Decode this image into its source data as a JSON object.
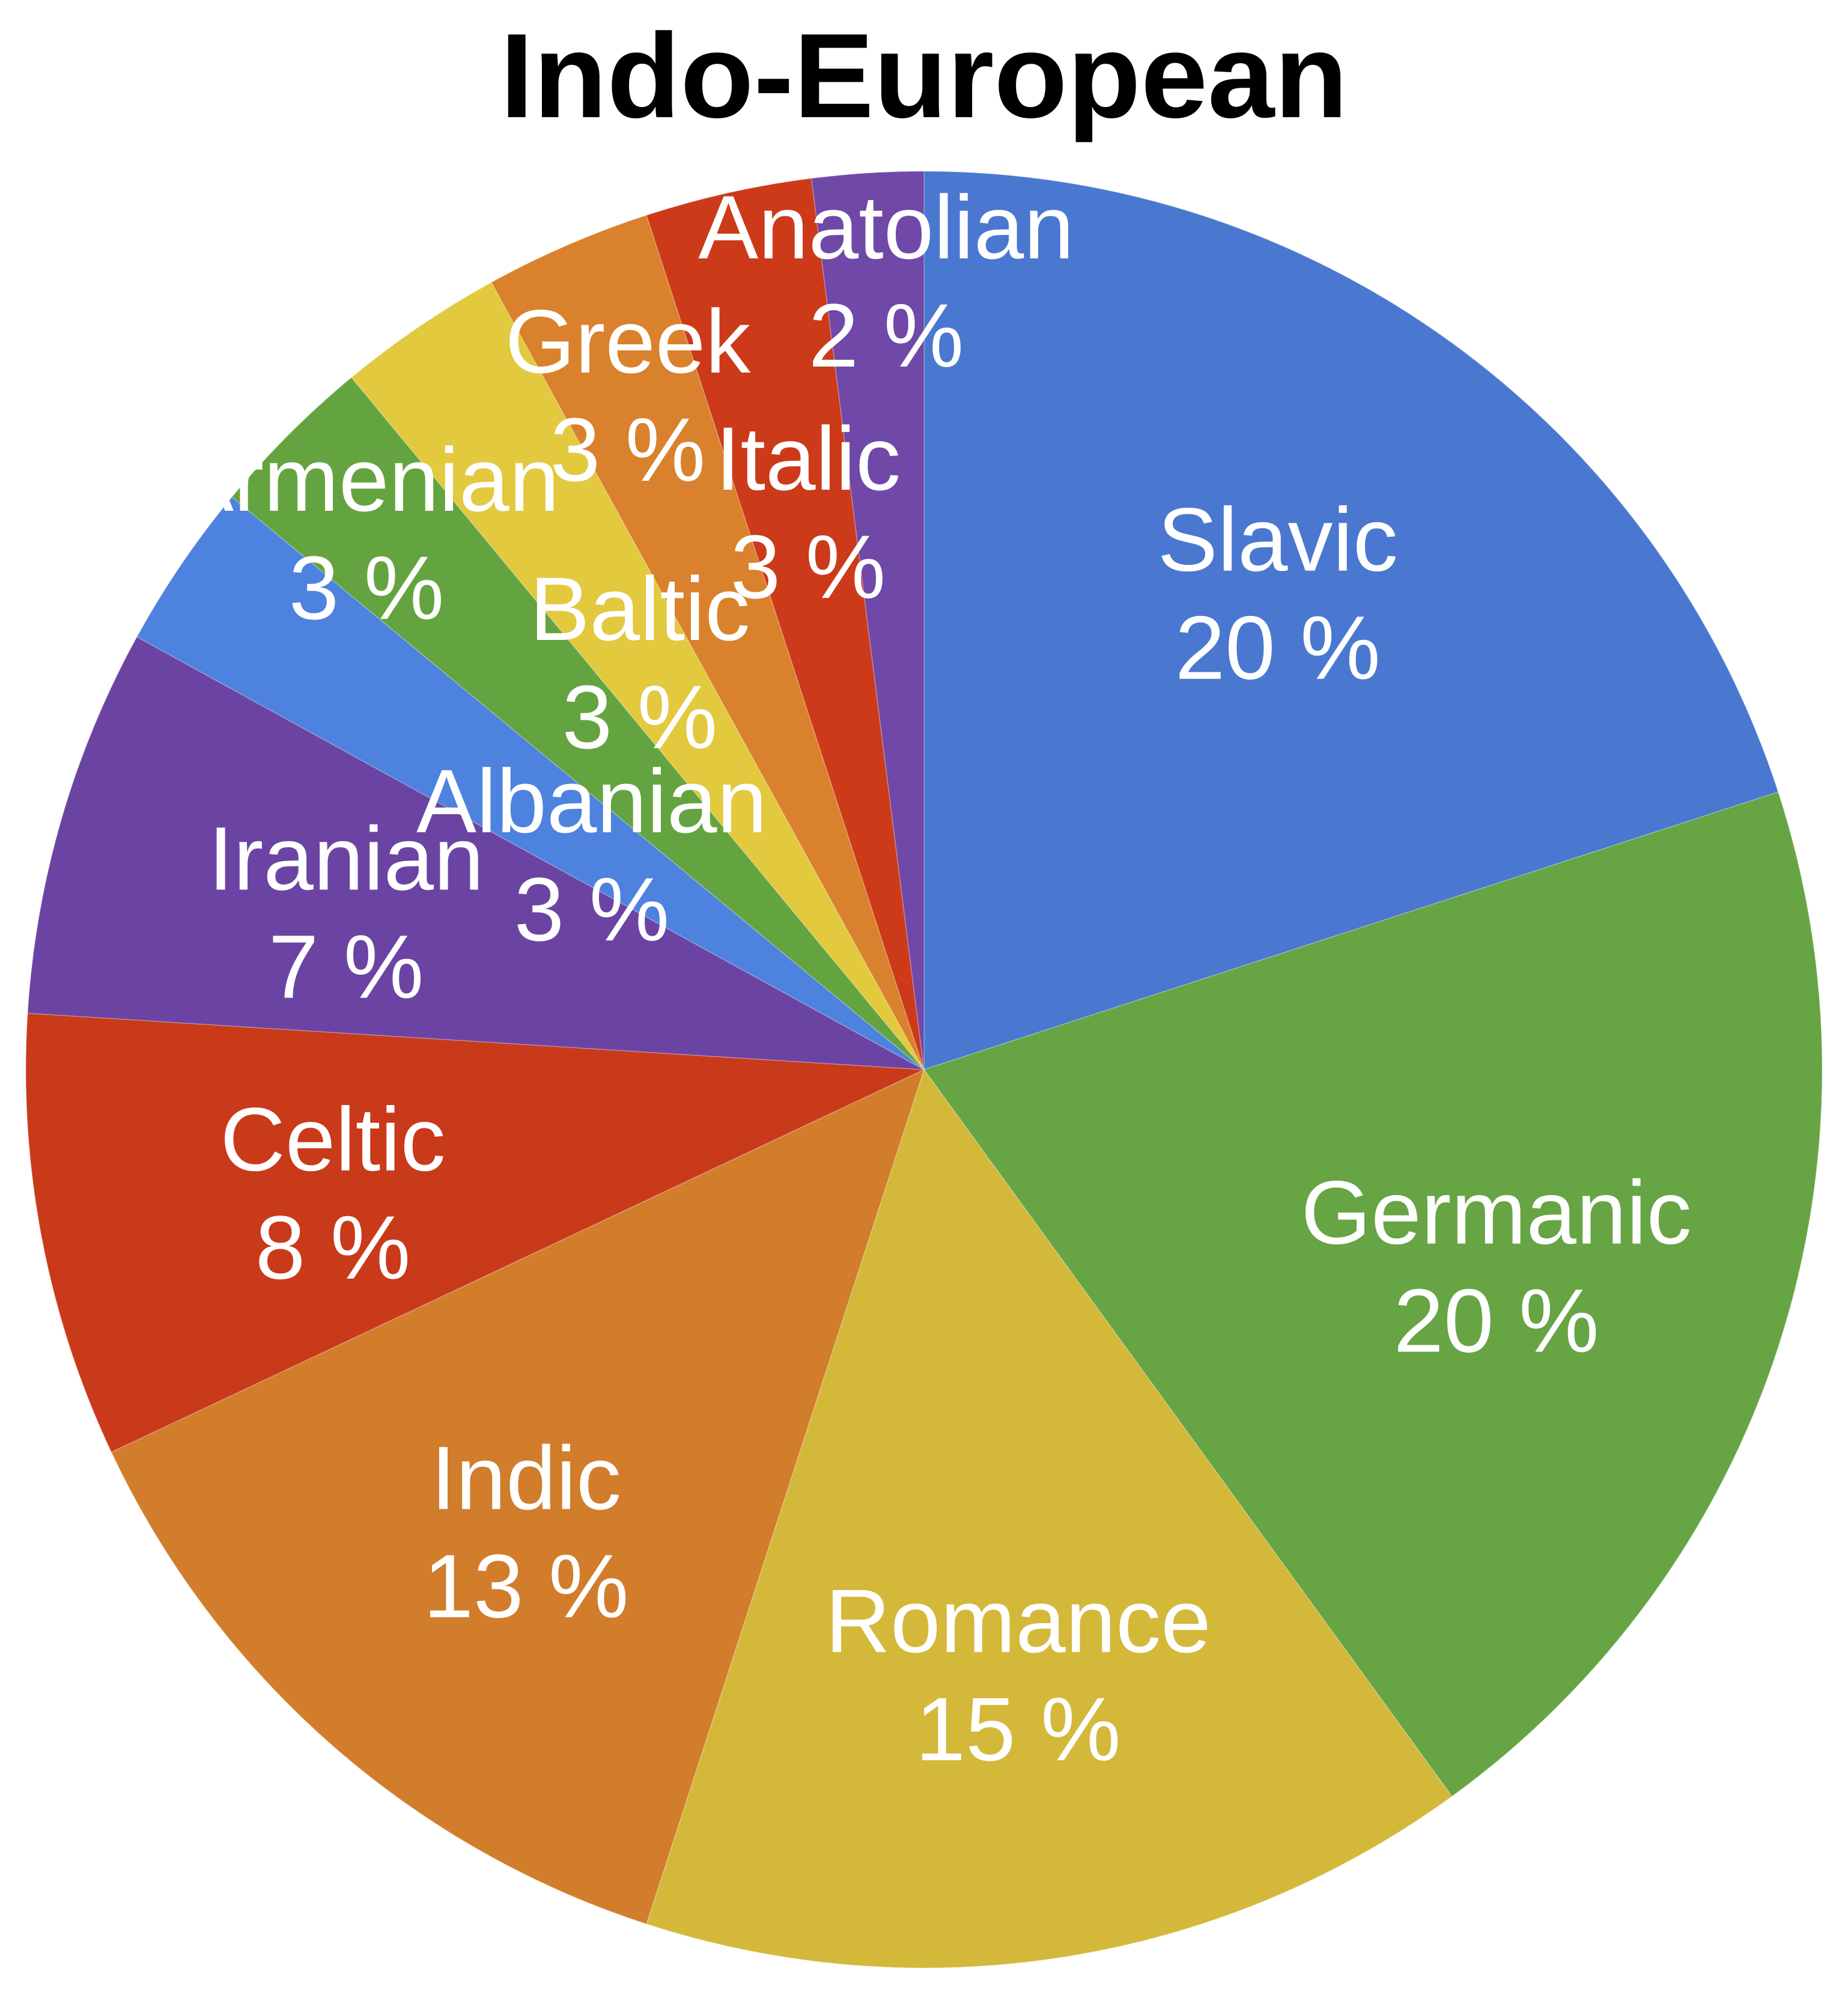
{
  "chart_data": {
    "type": "pie",
    "title": "Indo-European",
    "slices": [
      {
        "name": "Slavic",
        "value": 20,
        "label": "20 %",
        "color": "#4a78d0"
      },
      {
        "name": "Germanic",
        "value": 20,
        "label": "20 %",
        "color": "#66a444"
      },
      {
        "name": "Romance",
        "value": 15,
        "label": "15 %",
        "color": "#d4b83a"
      },
      {
        "name": "Indic",
        "value": 13,
        "label": "13 %",
        "color": "#d17d2b"
      },
      {
        "name": "Celtic",
        "value": 8,
        "label": "8 %",
        "color": "#c93a1a"
      },
      {
        "name": "Iranian",
        "value": 7,
        "label": "7 %",
        "color": "#6b44a3"
      },
      {
        "name": "Albanian",
        "value": 3,
        "label": "3 %",
        "color": "#4d82de"
      },
      {
        "name": "Armenian",
        "value": 3,
        "label": "3 %",
        "color": "#64a440"
      },
      {
        "name": "Baltic",
        "value": 3,
        "label": "3 %",
        "color": "#e2c93e"
      },
      {
        "name": "Greek",
        "value": 3,
        "label": "3 %",
        "color": "#d9812c"
      },
      {
        "name": "Italic",
        "value": 3,
        "label": "3 %",
        "color": "#cc3a1a"
      },
      {
        "name": "Anatolian",
        "value": 2,
        "label": "2 %",
        "color": "#6f48a8"
      }
    ]
  }
}
